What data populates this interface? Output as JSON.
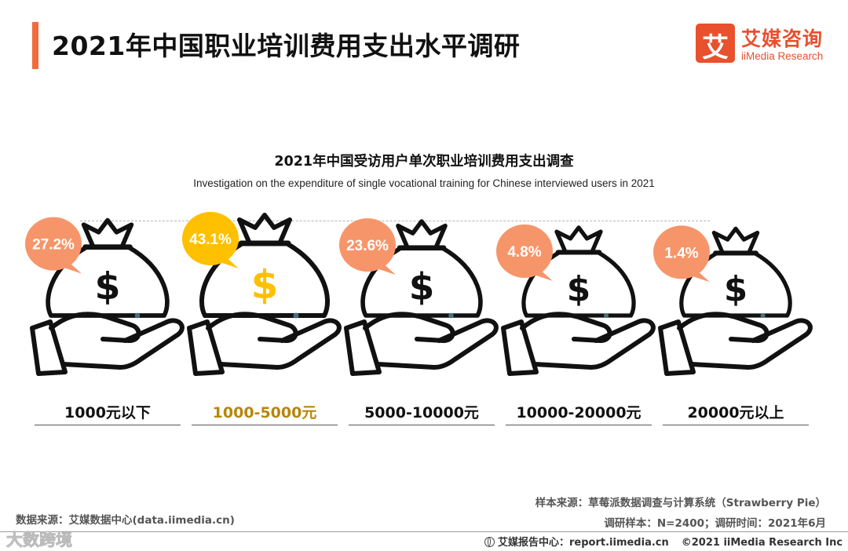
{
  "header": {
    "title": "2021年中国职业培训费用支出水平调研",
    "logo_char": "艾",
    "logo_cn": "艾媒咨询",
    "logo_en": "iiMedia Research"
  },
  "colors": {
    "accent": "#f26b3a",
    "bubble_default": "#f7956a",
    "bubble_highlight": "#ffc000",
    "dollar_highlight": "#ffc000",
    "label_highlight": "#b8860b",
    "outline": "#111111"
  },
  "chart_data": {
    "type": "pictogram",
    "title": "2021年中国受访用户单次职业培训费用支出调查",
    "subtitle": "Investigation on the expenditure of single vocational training for Chinese interviewed users in 2021",
    "unit": "%",
    "categories": [
      "1000元以下",
      "1000-5000元",
      "5000-10000元",
      "10000-20000元",
      "20000元以上"
    ],
    "values": [
      27.2,
      43.1,
      23.6,
      4.8,
      1.4
    ],
    "value_labels": [
      "27.2%",
      "43.1%",
      "23.6%",
      "4.8%",
      "1.4%"
    ],
    "highlight_index": 1
  },
  "footer": {
    "data_source": "数据来源：艾媒数据中心(data.iimedia.cn)",
    "sample_source": "样本来源：草莓派数据调查与计算系统（Strawberry Pie）",
    "sample_info": "调研样本：N=2400；调研时间：2021年6月",
    "report_center": "艾媒报告中心：report.iimedia.cn",
    "copyright": "©2021  iiMedia Research  Inc",
    "watermark": "大数跨境"
  }
}
